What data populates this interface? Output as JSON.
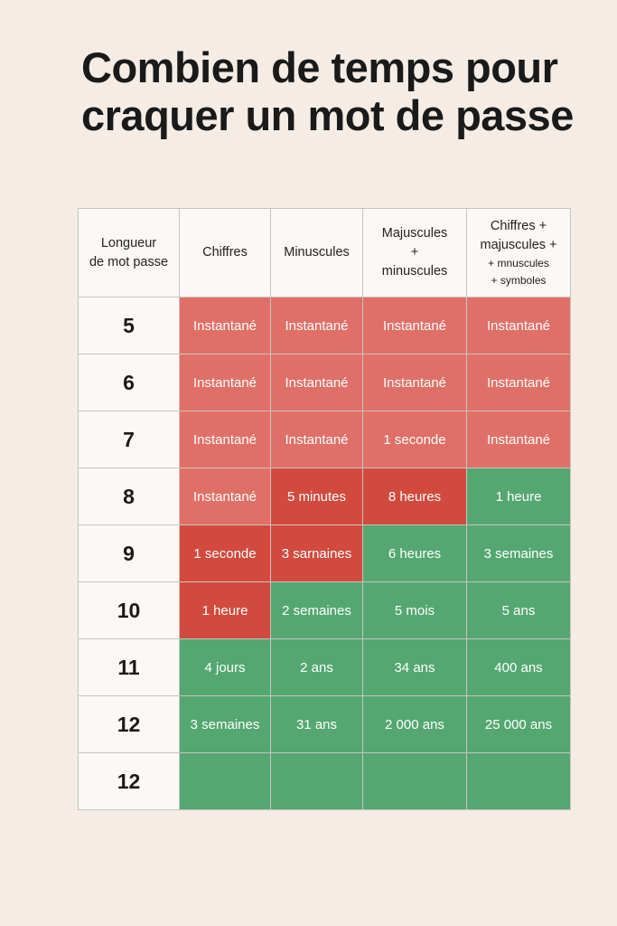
{
  "title": "Combien de temps pour craquer un mot de passe",
  "headers": {
    "length": [
      "Longueur",
      "de mot passe"
    ],
    "digits": "Chiffres",
    "lower": "Minuscules",
    "upper_lower": [
      "Majuscules",
      "+",
      "minuscules"
    ],
    "all": [
      "Chiffres +",
      "majuscules +",
      "+ mnuscules",
      "+ symboles"
    ]
  },
  "colors": {
    "instant": "#e07067",
    "fast": "#d24a3e",
    "safe": "#55a772",
    "background": "#f4ece5"
  },
  "rows": [
    {
      "length": "5",
      "cells": [
        {
          "text": "Instantané",
          "tone": "red"
        },
        {
          "text": "Instantané",
          "tone": "red"
        },
        {
          "text": "Instantané",
          "tone": "red"
        },
        {
          "text": "Instantané",
          "tone": "red"
        }
      ]
    },
    {
      "length": "6",
      "cells": [
        {
          "text": "Instantané",
          "tone": "red"
        },
        {
          "text": "Instantané",
          "tone": "red"
        },
        {
          "text": "Instantané",
          "tone": "red"
        },
        {
          "text": "Instantané",
          "tone": "red"
        }
      ]
    },
    {
      "length": "7",
      "cells": [
        {
          "text": "Instantané",
          "tone": "red"
        },
        {
          "text": "Instantané",
          "tone": "red"
        },
        {
          "text": "1 seconde",
          "tone": "red"
        },
        {
          "text": "Instantané",
          "tone": "red"
        }
      ]
    },
    {
      "length": "8",
      "cells": [
        {
          "text": "Instantané",
          "tone": "red"
        },
        {
          "text": "5 minutes",
          "tone": "dark"
        },
        {
          "text": "8 heures",
          "tone": "dark"
        },
        {
          "text": "1 heure",
          "tone": "green"
        }
      ]
    },
    {
      "length": "9",
      "cells": [
        {
          "text": "1 seconde",
          "tone": "dark"
        },
        {
          "text": "3 sarnaines",
          "tone": "dark"
        },
        {
          "text": "6 heures",
          "tone": "green"
        },
        {
          "text": "3 semaines",
          "tone": "green"
        }
      ]
    },
    {
      "length": "10",
      "cells": [
        {
          "text": "1 heure",
          "tone": "dark"
        },
        {
          "text": "2 semaines",
          "tone": "green"
        },
        {
          "text": "5 mois",
          "tone": "green"
        },
        {
          "text": "5 ans",
          "tone": "green"
        }
      ]
    },
    {
      "length": "11",
      "cells": [
        {
          "text": "4 jours",
          "tone": "green"
        },
        {
          "text": "2 ans",
          "tone": "green"
        },
        {
          "text": "34 ans",
          "tone": "green"
        },
        {
          "text": "400 ans",
          "tone": "green"
        }
      ]
    },
    {
      "length": "12",
      "cells": [
        {
          "text": "3 semaines",
          "tone": "green"
        },
        {
          "text": "31 ans",
          "tone": "green"
        },
        {
          "text": "2 000 ans",
          "tone": "green"
        },
        {
          "text": "25 000 ans",
          "tone": "green"
        }
      ]
    },
    {
      "length": "12",
      "cells": [
        {
          "text": "",
          "tone": "green"
        },
        {
          "text": "",
          "tone": "green"
        },
        {
          "text": "",
          "tone": "green"
        },
        {
          "text": "",
          "tone": "green"
        }
      ]
    }
  ]
}
